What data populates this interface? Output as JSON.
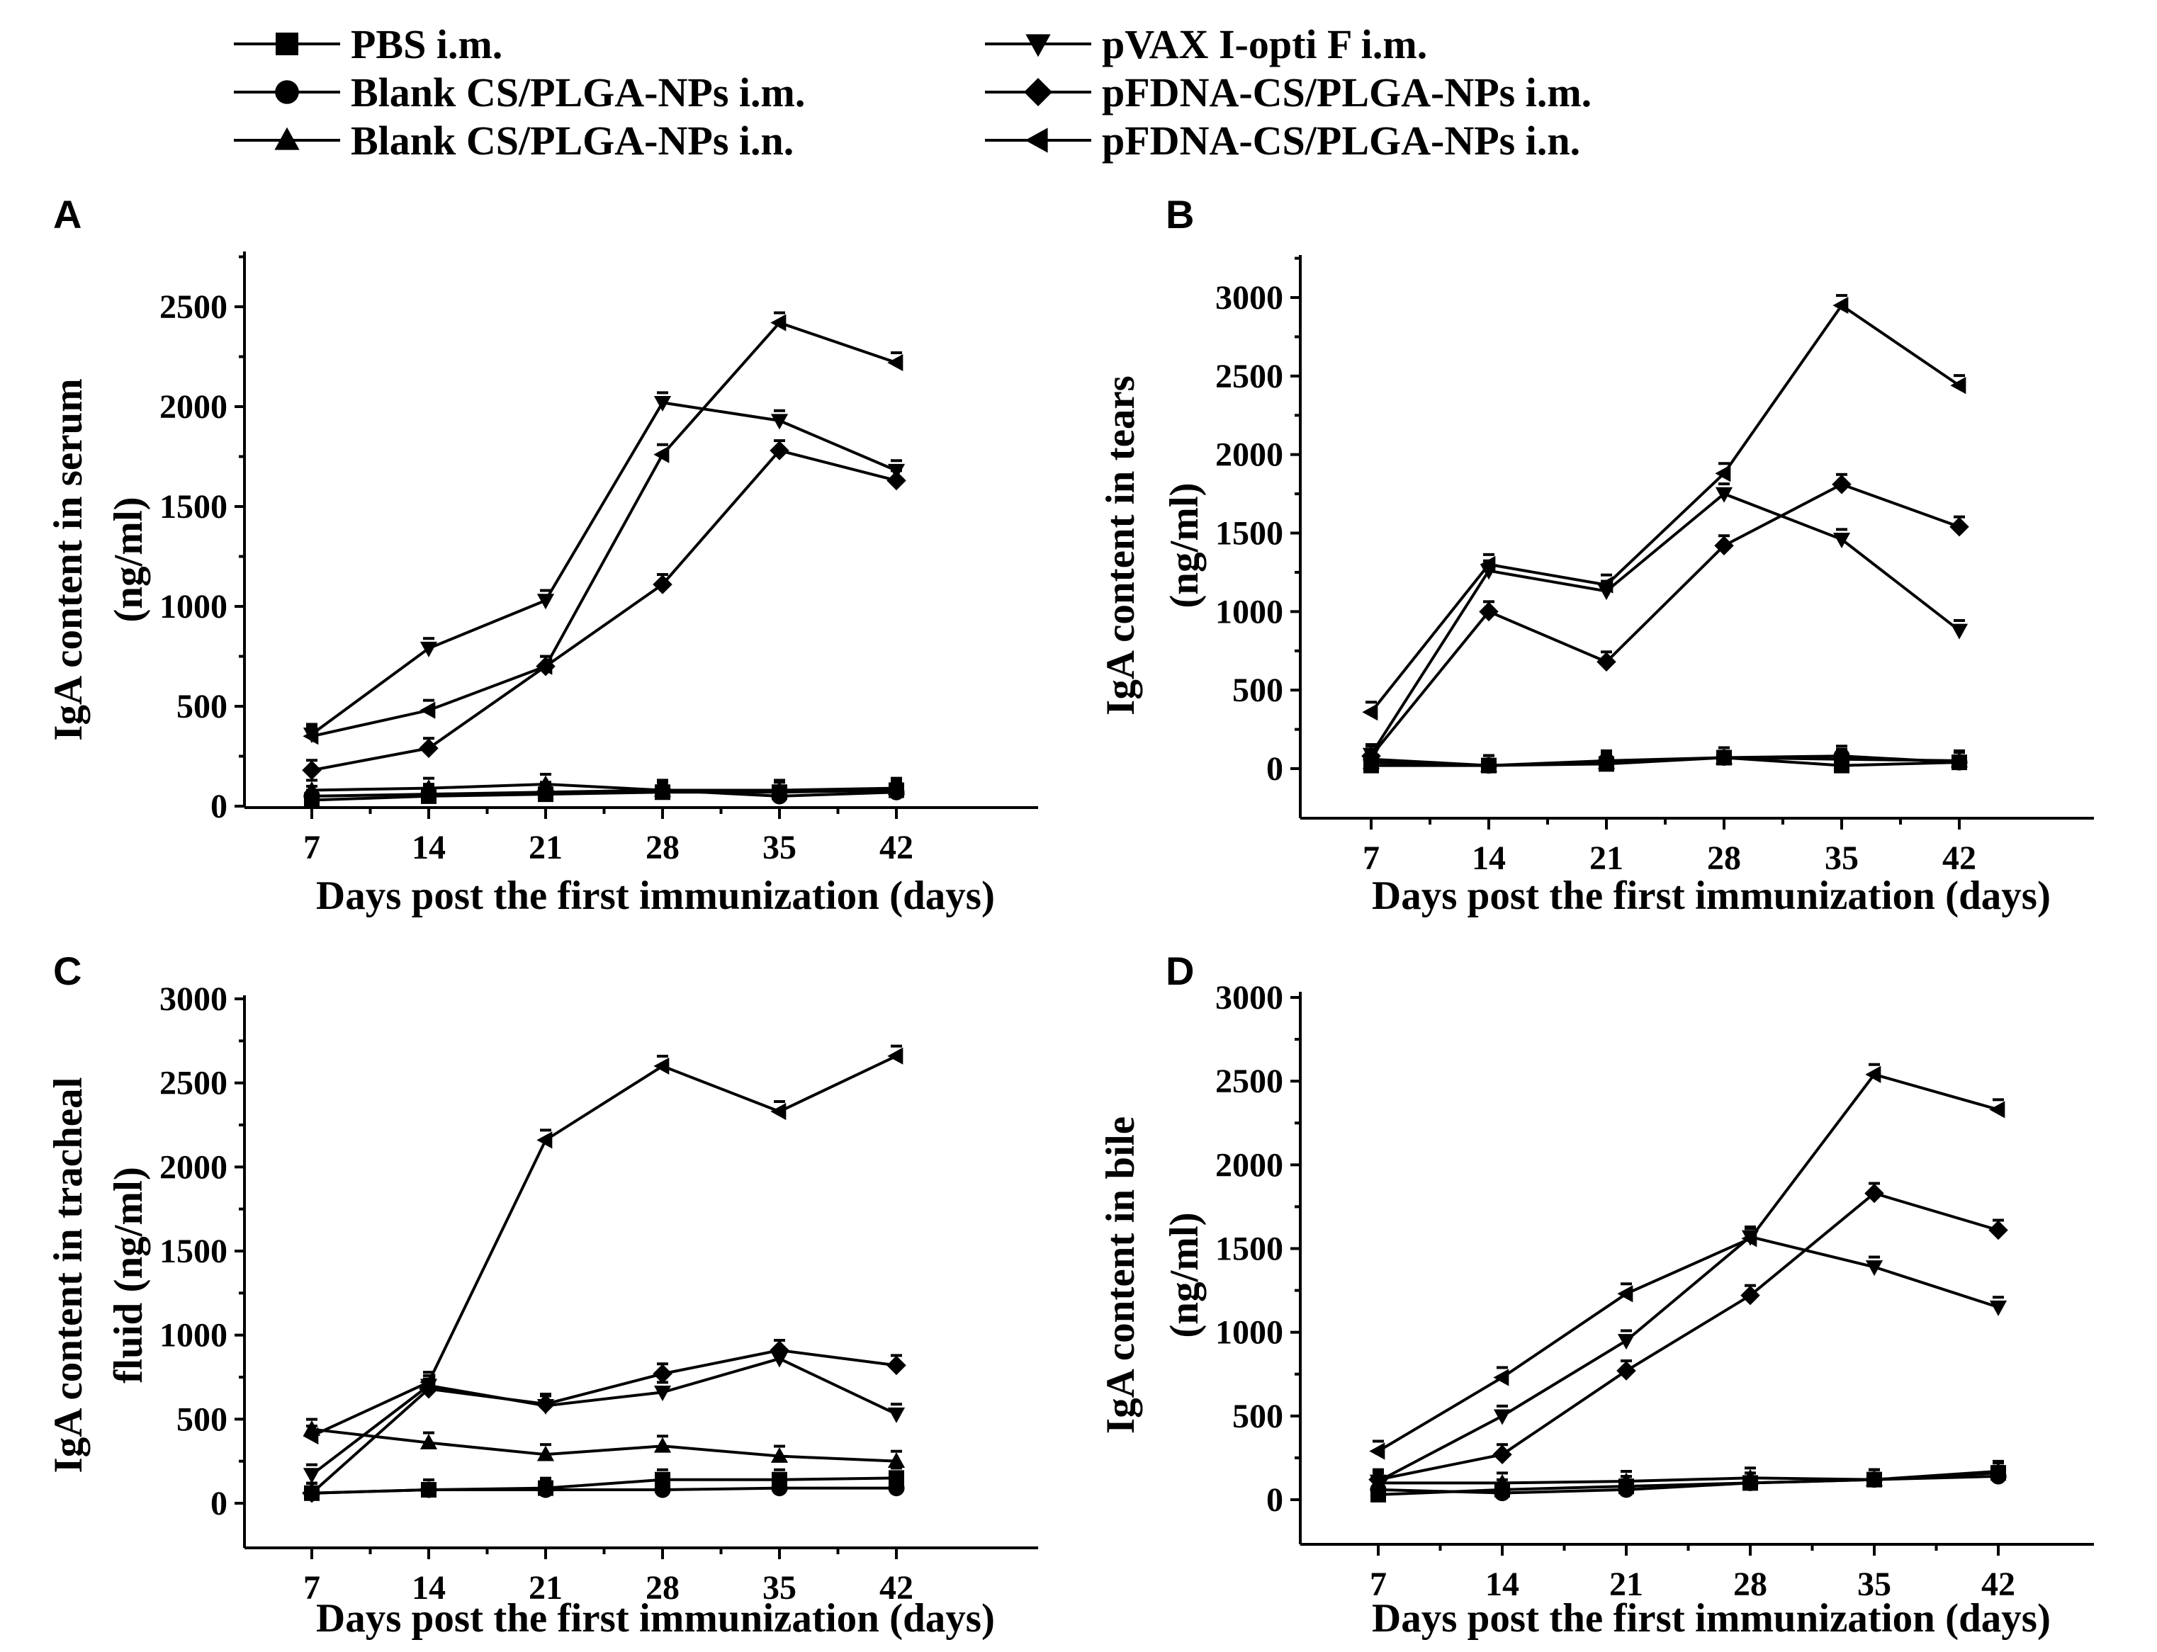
{
  "legend": {
    "entries": [
      {
        "label": "PBS i.m.",
        "marker": "square"
      },
      {
        "label": "Blank CS/PLGA-NPs i.m.",
        "marker": "circle"
      },
      {
        "label": "Blank CS/PLGA-NPs i.n.",
        "marker": "triangle-up"
      },
      {
        "label": "pVAX I-opti F i.m.",
        "marker": "triangle-down"
      },
      {
        "label": "pFDNA-CS/PLGA-NPs i.m.",
        "marker": "diamond"
      },
      {
        "label": "pFDNA-CS/PLGA-NPs i.n.",
        "marker": "triangle-left"
      }
    ]
  },
  "chart_data": [
    {
      "type": "line",
      "panel": "A",
      "xlabel": "Days post the first immunization (days)",
      "ylabel": [
        "IgA content in serum",
        "(ng/ml)"
      ],
      "x": [
        7,
        14,
        21,
        28,
        35,
        42
      ],
      "xlim": [
        0,
        49
      ],
      "ylim": [
        0,
        2750
      ],
      "yticks": [
        0,
        500,
        1000,
        1500,
        2000,
        2500
      ],
      "series": [
        {
          "name": "PBS i.m.",
          "values": [
            30,
            50,
            60,
            70,
            70,
            80
          ]
        },
        {
          "name": "Blank CS/PLGA-NPs i.m.",
          "values": [
            50,
            60,
            70,
            80,
            50,
            70
          ]
        },
        {
          "name": "Blank CS/PLGA-NPs i.n.",
          "values": [
            80,
            90,
            110,
            80,
            80,
            90
          ]
        },
        {
          "name": "pVAX I-opti F i.m.",
          "values": [
            360,
            790,
            1030,
            2020,
            1930,
            1680
          ]
        },
        {
          "name": "pFDNA-CS/PLGA-NPs i.m.",
          "values": [
            180,
            290,
            700,
            1110,
            1780,
            1630
          ]
        },
        {
          "name": "pFDNA-CS/PLGA-NPs i.n.",
          "values": [
            350,
            480,
            700,
            1760,
            2420,
            2220
          ]
        }
      ]
    },
    {
      "type": "line",
      "panel": "B",
      "xlabel": "Days post the first immunization (days)",
      "ylabel": [
        "IgA content in tears",
        "(ng/ml)"
      ],
      "x": [
        7,
        14,
        21,
        28,
        35,
        42
      ],
      "xlim": [
        0,
        49
      ],
      "ylim": [
        -150,
        3200
      ],
      "yticks": [
        0,
        500,
        1000,
        1500,
        2000,
        2500,
        3000
      ],
      "series": [
        {
          "name": "PBS i.m.",
          "values": [
            20,
            20,
            30,
            70,
            20,
            40
          ]
        },
        {
          "name": "Blank CS/PLGA-NPs i.m.",
          "values": [
            60,
            20,
            50,
            70,
            80,
            40
          ]
        },
        {
          "name": "Blank CS/PLGA-NPs i.n.",
          "values": [
            40,
            20,
            40,
            70,
            60,
            50
          ]
        },
        {
          "name": "pVAX I-opti F i.m.",
          "values": [
            90,
            1260,
            1130,
            1750,
            1460,
            880
          ]
        },
        {
          "name": "pFDNA-CS/PLGA-NPs i.m.",
          "values": [
            80,
            1000,
            680,
            1420,
            1810,
            1540
          ]
        },
        {
          "name": "pFDNA-CS/PLGA-NPs i.n.",
          "values": [
            360,
            1300,
            1170,
            1880,
            2950,
            2440
          ]
        }
      ]
    },
    {
      "type": "line",
      "panel": "C",
      "xlabel": "Days post the first immunization (days)",
      "ylabel": [
        "IgA content in tracheal",
        "fluid (ng/ml)"
      ],
      "x": [
        7,
        14,
        21,
        28,
        35,
        42
      ],
      "xlim": [
        0,
        49
      ],
      "ylim": [
        -150,
        3000
      ],
      "yticks": [
        0,
        500,
        1000,
        1500,
        2000,
        2500,
        3000
      ],
      "series": [
        {
          "name": "PBS i.m.",
          "values": [
            60,
            80,
            90,
            140,
            140,
            150
          ]
        },
        {
          "name": "Blank CS/PLGA-NPs i.m.",
          "values": [
            60,
            80,
            80,
            80,
            90,
            90
          ]
        },
        {
          "name": "Blank CS/PLGA-NPs i.n.",
          "values": [
            440,
            360,
            290,
            340,
            280,
            250
          ]
        },
        {
          "name": "pVAX I-opti F i.m.",
          "values": [
            170,
            700,
            580,
            660,
            860,
            530
          ]
        },
        {
          "name": "pFDNA-CS/PLGA-NPs i.m.",
          "values": [
            60,
            680,
            590,
            770,
            910,
            820
          ]
        },
        {
          "name": "pFDNA-CS/PLGA-NPs i.n.",
          "values": [
            400,
            720,
            2160,
            2600,
            2330,
            2660
          ]
        }
      ]
    },
    {
      "type": "line",
      "panel": "D",
      "xlabel": "Days post the first immunization (days)",
      "ylabel": [
        "IgA content in bile",
        "(ng/ml)"
      ],
      "x": [
        7,
        14,
        21,
        28,
        35,
        42
      ],
      "xlim": [
        0,
        49
      ],
      "ylim": [
        -150,
        3000
      ],
      "yticks": [
        0,
        500,
        1000,
        1500,
        2000,
        2500,
        3000
      ],
      "series": [
        {
          "name": "PBS i.m.",
          "values": [
            30,
            60,
            80,
            100,
            120,
            160
          ]
        },
        {
          "name": "Blank CS/PLGA-NPs i.m.",
          "values": [
            60,
            40,
            60,
            100,
            120,
            140
          ]
        },
        {
          "name": "Blank CS/PLGA-NPs i.n.",
          "values": [
            100,
            100,
            110,
            130,
            120,
            170
          ]
        },
        {
          "name": "pVAX I-opti F i.m.",
          "values": [
            110,
            500,
            950,
            1570,
            1390,
            1150
          ]
        },
        {
          "name": "pFDNA-CS/PLGA-NPs i.m.",
          "values": [
            120,
            270,
            770,
            1220,
            1830,
            1610
          ]
        },
        {
          "name": "pFDNA-CS/PLGA-NPs i.n.",
          "values": [
            290,
            730,
            1230,
            1560,
            2540,
            2330
          ]
        }
      ]
    }
  ]
}
